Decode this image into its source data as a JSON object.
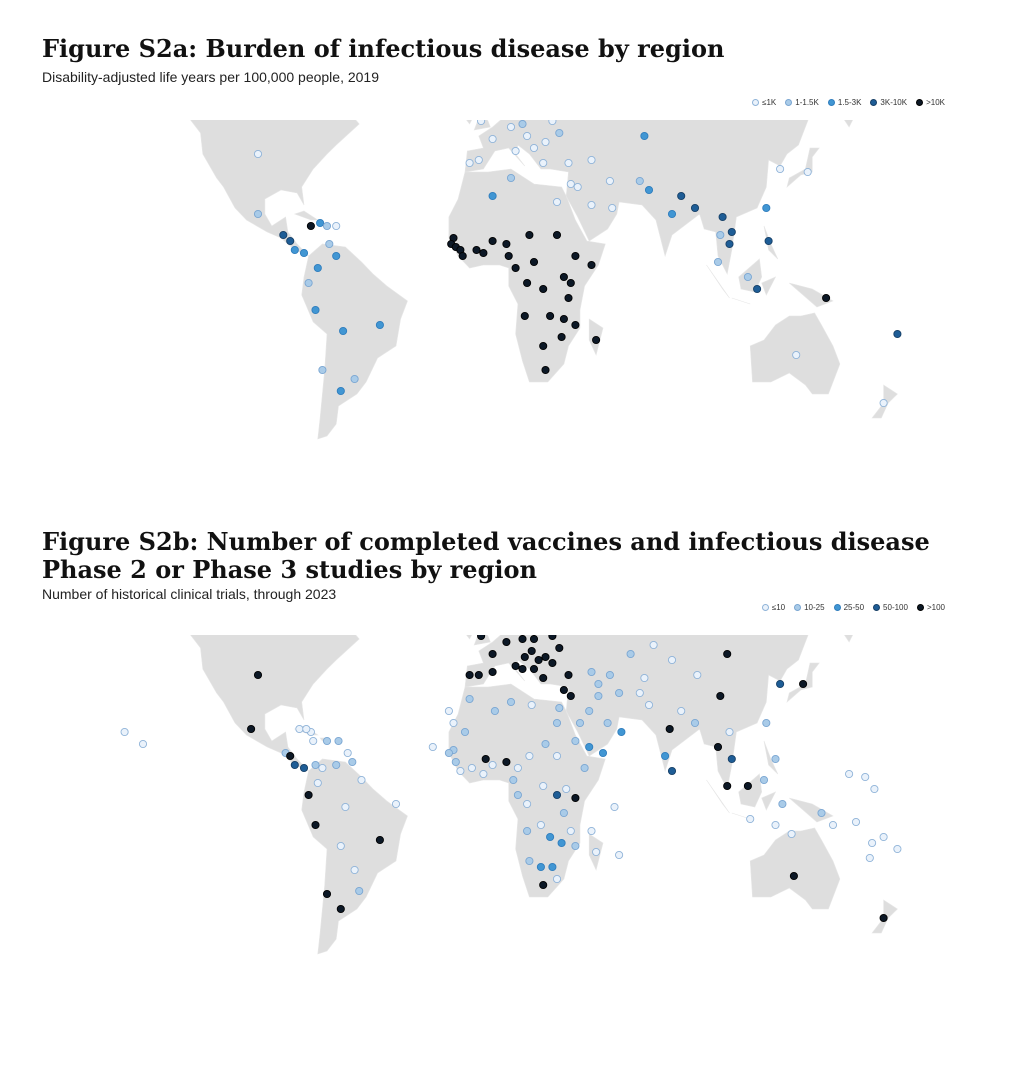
{
  "colors": {
    "land": "#dedede",
    "bins": [
      "#eaf2fb",
      "#a9cbe8",
      "#4196d3",
      "#1e5d96",
      "#0c1826"
    ],
    "strokes": [
      "#8fb3d8",
      "#7aa6d2",
      "#2f7dbd",
      "#163f66",
      "#000000"
    ]
  },
  "figures": [
    {
      "id": "fig-a",
      "title": "Figure S2a: Burden of infectious disease by region",
      "subtitle": "Disability-adjusted life years per 100,000 people, 2019",
      "legend": [
        "≤1K",
        "1-1.5K",
        "1.5-3K",
        "3K-10K",
        ">10K"
      ],
      "points": [
        [
          -105,
          57,
          0
        ],
        [
          -100,
          42,
          0
        ],
        [
          -152,
          64,
          0
        ],
        [
          -40,
          72,
          0
        ],
        [
          -18,
          65,
          0
        ],
        [
          -3,
          53,
          0
        ],
        [
          2,
          47,
          0
        ],
        [
          10,
          51,
          0
        ],
        [
          15,
          52,
          1
        ],
        [
          -4,
          40,
          0
        ],
        [
          -8,
          39,
          0
        ],
        [
          12,
          43,
          0
        ],
        [
          17,
          48,
          0
        ],
        [
          20,
          44,
          0
        ],
        [
          25,
          46,
          0
        ],
        [
          24,
          39,
          0
        ],
        [
          9,
          56,
          0
        ],
        [
          15,
          62,
          0
        ],
        [
          26,
          62,
          0
        ],
        [
          24,
          56,
          0
        ],
        [
          28,
          53,
          0
        ],
        [
          31,
          49,
          1
        ],
        [
          38,
          57,
          0
        ],
        [
          45,
          57,
          1
        ],
        [
          35,
          39,
          0
        ],
        [
          45,
          40,
          0
        ],
        [
          53,
          33,
          0
        ],
        [
          68,
          48,
          2
        ],
        [
          45,
          25,
          0
        ],
        [
          39,
          31,
          0
        ],
        [
          54,
          24,
          0
        ],
        [
          36,
          32,
          0
        ],
        [
          66,
          33,
          1
        ],
        [
          70,
          30,
          2
        ],
        [
          80,
          22,
          2
        ],
        [
          90,
          24,
          3
        ],
        [
          84,
          28,
          3
        ],
        [
          102,
          21,
          3
        ],
        [
          106,
          16,
          3
        ],
        [
          105,
          12,
          3
        ],
        [
          101,
          15,
          1
        ],
        [
          127,
          37,
          0
        ],
        [
          139,
          36,
          0
        ],
        [
          121,
          24,
          2
        ],
        [
          122,
          13,
          3
        ],
        [
          113,
          1,
          1
        ],
        [
          100,
          6,
          1
        ],
        [
          117,
          -3,
          3
        ],
        [
          147,
          -6,
          4
        ],
        [
          134,
          -25,
          0
        ],
        [
          172,
          -41,
          0
        ],
        [
          178,
          -18,
          3
        ],
        [
          -100,
          22,
          1
        ],
        [
          -89,
          15,
          3
        ],
        [
          -86,
          13,
          3
        ],
        [
          -84,
          10,
          2
        ],
        [
          -80,
          9,
          2
        ],
        [
          -77,
          18,
          4
        ],
        [
          -73,
          19,
          2
        ],
        [
          -70,
          18,
          1
        ],
        [
          -66,
          18,
          0
        ],
        [
          -69,
          12,
          1
        ],
        [
          -66,
          8,
          2
        ],
        [
          -74,
          4,
          2
        ],
        [
          -78,
          -1,
          1
        ],
        [
          -75,
          -10,
          2
        ],
        [
          -63,
          -17,
          2
        ],
        [
          -47,
          -15,
          2
        ],
        [
          -58,
          -33,
          1
        ],
        [
          -64,
          -37,
          2
        ],
        [
          -72,
          -30,
          1
        ],
        [
          2,
          28,
          2
        ],
        [
          10,
          34,
          1
        ],
        [
          30,
          26,
          0
        ],
        [
          -15,
          14,
          4
        ],
        [
          -16,
          12,
          4
        ],
        [
          -14,
          11,
          4
        ],
        [
          -12,
          10,
          4
        ],
        [
          -11,
          8,
          4
        ],
        [
          -5,
          10,
          4
        ],
        [
          -2,
          9,
          4
        ],
        [
          2,
          13,
          4
        ],
        [
          8,
          12,
          4
        ],
        [
          18,
          15,
          4
        ],
        [
          9,
          8,
          4
        ],
        [
          30,
          15,
          4
        ],
        [
          12,
          4,
          4
        ],
        [
          20,
          6,
          4
        ],
        [
          17,
          -1,
          4
        ],
        [
          24,
          -3,
          4
        ],
        [
          33,
          1,
          4
        ],
        [
          38,
          8,
          4
        ],
        [
          45,
          5,
          4
        ],
        [
          36,
          -1,
          4
        ],
        [
          35,
          -6,
          4
        ],
        [
          16,
          -12,
          4
        ],
        [
          27,
          -12,
          4
        ],
        [
          33,
          -13,
          4
        ],
        [
          47,
          -20,
          4
        ],
        [
          24,
          -22,
          4
        ],
        [
          32,
          -19,
          4
        ],
        [
          38,
          -15,
          4
        ],
        [
          25,
          -30,
          4
        ]
      ]
    },
    {
      "id": "fig-b",
      "title": "Figure S2b: Number of completed vaccines and infectious disease\nPhase 2 or Phase 3 studies by region",
      "subtitle": "Number of historical clinical trials, through 2023",
      "legend": [
        "≤10",
        "10-25",
        "25-50",
        "50-100",
        ">100"
      ],
      "points": [
        [
          -150,
          64,
          4
        ],
        [
          -100,
          40,
          4
        ],
        [
          -42,
          72,
          0
        ],
        [
          -18,
          65,
          2
        ],
        [
          -3,
          53,
          4
        ],
        [
          2,
          47,
          4
        ],
        [
          8,
          51,
          4
        ],
        [
          15,
          52,
          4
        ],
        [
          20,
          52,
          4
        ],
        [
          12,
          56,
          4
        ],
        [
          10,
          60,
          4
        ],
        [
          18,
          60,
          4
        ],
        [
          25,
          62,
          4
        ],
        [
          25,
          58,
          0
        ],
        [
          28,
          53,
          4
        ],
        [
          31,
          49,
          4
        ],
        [
          38,
          56,
          4
        ],
        [
          19,
          48,
          4
        ],
        [
          25,
          46,
          4
        ],
        [
          15,
          42,
          4
        ],
        [
          12,
          43,
          4
        ],
        [
          2,
          41,
          4
        ],
        [
          -4,
          40,
          4
        ],
        [
          -8,
          40,
          4
        ],
        [
          20,
          42,
          4
        ],
        [
          24,
          39,
          4
        ],
        [
          35,
          40,
          4
        ],
        [
          33,
          35,
          4
        ],
        [
          36,
          33,
          4
        ],
        [
          28,
          44,
          4
        ],
        [
          22,
          45,
          4
        ],
        [
          16,
          46,
          4
        ],
        [
          45,
          41,
          1
        ],
        [
          53,
          40,
          1
        ],
        [
          48,
          33,
          1
        ],
        [
          44,
          28,
          1
        ],
        [
          40,
          24,
          1
        ],
        [
          52,
          24,
          1
        ],
        [
          44,
          16,
          2
        ],
        [
          50,
          14,
          2
        ],
        [
          58,
          21,
          2
        ],
        [
          38,
          18,
          1
        ],
        [
          42,
          9,
          1
        ],
        [
          48,
          37,
          1
        ],
        [
          57,
          34,
          1
        ],
        [
          66,
          34,
          0
        ],
        [
          70,
          30,
          0
        ],
        [
          79,
          22,
          4
        ],
        [
          84,
          28,
          0
        ],
        [
          90,
          24,
          1
        ],
        [
          77,
          13,
          2
        ],
        [
          80,
          8,
          3
        ],
        [
          100,
          16,
          4
        ],
        [
          105,
          21,
          0
        ],
        [
          106,
          12,
          3
        ],
        [
          104,
          3,
          4
        ],
        [
          113,
          3,
          4
        ],
        [
          120,
          5,
          1
        ],
        [
          125,
          12,
          1
        ],
        [
          121,
          24,
          1
        ],
        [
          127,
          37,
          3
        ],
        [
          137,
          37,
          4
        ],
        [
          101,
          33,
          4
        ],
        [
          104,
          47,
          4
        ],
        [
          91,
          40,
          0
        ],
        [
          80,
          45,
          0
        ],
        [
          62,
          47,
          1
        ],
        [
          68,
          39,
          0
        ],
        [
          72,
          50,
          0
        ],
        [
          145,
          -6,
          1
        ],
        [
          150,
          -10,
          0
        ],
        [
          160,
          -9,
          0
        ],
        [
          167,
          -16,
          0
        ],
        [
          178,
          -18,
          0
        ],
        [
          172,
          -14,
          0
        ],
        [
          133,
          -27,
          4
        ],
        [
          172,
          -41,
          4
        ],
        [
          125,
          -10,
          0
        ],
        [
          132,
          -13,
          0
        ],
        [
          114,
          -8,
          0
        ],
        [
          128,
          -3,
          1
        ],
        [
          157,
          7,
          0
        ],
        [
          164,
          6,
          0
        ],
        [
          168,
          2,
          0
        ],
        [
          166,
          -21,
          0
        ],
        [
          -158,
          21,
          0
        ],
        [
          -150,
          17,
          0
        ],
        [
          -17,
          28,
          0
        ],
        [
          -24,
          16,
          0
        ],
        [
          10,
          31,
          1
        ],
        [
          3,
          28,
          1
        ],
        [
          -8,
          32,
          1
        ],
        [
          19,
          30,
          0
        ],
        [
          31,
          29,
          1
        ],
        [
          30,
          24,
          1
        ],
        [
          -15,
          24,
          0
        ],
        [
          -10,
          21,
          1
        ],
        [
          -15,
          15,
          1
        ],
        [
          -17,
          14,
          1
        ],
        [
          -14,
          11,
          1
        ],
        [
          -12,
          8,
          0
        ],
        [
          -7,
          9,
          0
        ],
        [
          -2,
          7,
          0
        ],
        [
          -1,
          12,
          4
        ],
        [
          2,
          10,
          0
        ],
        [
          8,
          11,
          4
        ],
        [
          13,
          9,
          0
        ],
        [
          18,
          13,
          0
        ],
        [
          30,
          13,
          0
        ],
        [
          25,
          17,
          1
        ],
        [
          11,
          5,
          1
        ],
        [
          13,
          0,
          1
        ],
        [
          17,
          -3,
          0
        ],
        [
          24,
          3,
          0
        ],
        [
          23,
          -10,
          0
        ],
        [
          30,
          0,
          3
        ],
        [
          34,
          2,
          0
        ],
        [
          38,
          -1,
          4
        ],
        [
          33,
          -6,
          1
        ],
        [
          36,
          -12,
          0
        ],
        [
          27,
          -14,
          2
        ],
        [
          32,
          -16,
          2
        ],
        [
          17,
          -12,
          1
        ],
        [
          18,
          -22,
          1
        ],
        [
          23,
          -24,
          2
        ],
        [
          28,
          -24,
          2
        ],
        [
          24,
          -30,
          4
        ],
        [
          30,
          -28,
          0
        ],
        [
          45,
          -12,
          0
        ],
        [
          47,
          -19,
          0
        ],
        [
          57,
          -20,
          0
        ],
        [
          55,
          -4,
          0
        ],
        [
          38,
          -17,
          1
        ],
        [
          -61,
          14,
          0
        ],
        [
          -70,
          18,
          1
        ],
        [
          -65,
          18,
          1
        ],
        [
          -76,
          18,
          0
        ],
        [
          -77,
          21,
          0
        ],
        [
          -82,
          22,
          0
        ],
        [
          -88,
          14,
          1
        ],
        [
          -86,
          13,
          4
        ],
        [
          -84,
          10,
          3
        ],
        [
          -80,
          9,
          3
        ],
        [
          -79,
          22,
          0
        ],
        [
          -66,
          10,
          1
        ],
        [
          -72,
          9,
          0
        ],
        [
          -75,
          10,
          1
        ],
        [
          -59,
          11,
          1
        ],
        [
          -55,
          5,
          0
        ],
        [
          -74,
          4,
          0
        ],
        [
          -78,
          0,
          4
        ],
        [
          -75,
          -10,
          4
        ],
        [
          -62,
          -4,
          0
        ],
        [
          -47,
          -15,
          4
        ],
        [
          -40,
          -3,
          0
        ],
        [
          -64,
          -17,
          0
        ],
        [
          -58,
          -25,
          0
        ],
        [
          -56,
          -32,
          1
        ],
        [
          -70,
          -33,
          4
        ],
        [
          -64,
          -38,
          4
        ],
        [
          -103,
          22,
          4
        ],
        [
          -105,
          57,
          0
        ]
      ]
    }
  ]
}
